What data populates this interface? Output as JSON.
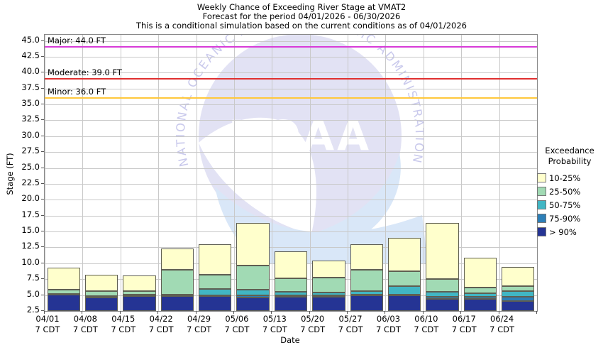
{
  "title": {
    "line1": "Weekly Chance of Exceeding River Stage at VMAT2",
    "line2": "Forecast for the period 04/01/2026 - 06/30/2026",
    "line3": "This is a conditional simulation based on the current conditions as of 04/01/2026"
  },
  "axes": {
    "y_label": "Stage (FT)",
    "x_label": "Date"
  },
  "legend": {
    "title_line1": "Exceedance",
    "title_line2": "Probability",
    "items": [
      {
        "label": "10-25%",
        "color": "#FFFFCC"
      },
      {
        "label": "25-50%",
        "color": "#A1DAB4"
      },
      {
        "label": "50-75%",
        "color": "#41B6C4"
      },
      {
        "label": "75-90%",
        "color": "#2C7FB8"
      },
      {
        "label": "> 90%",
        "color": "#253494"
      }
    ]
  },
  "watermark": {
    "ring_text": "NATIONAL OCEANIC AND ATMOSPHERIC ADMINISTRATION",
    "center_text": "NOAA",
    "circle_color": "#e2e2f4",
    "swoosh_color": "#d9e7f8",
    "ring_text_color": "#c9c9ec"
  },
  "chart_data": {
    "type": "bar",
    "stacked": true,
    "title": "Weekly Chance of Exceeding River Stage at VMAT2",
    "xlabel": "Date",
    "ylabel": "Stage (FT)",
    "ylim": [
      2.5,
      45.0
    ],
    "ytick_step": 2.5,
    "yticks": [
      2.5,
      5.0,
      7.5,
      10.0,
      12.5,
      15.0,
      17.5,
      20.0,
      22.5,
      25.0,
      27.5,
      30.0,
      32.5,
      35.0,
      37.5,
      40.0,
      42.5,
      45.0
    ],
    "base_value": 2.5,
    "categories": [
      "04/01",
      "04/08",
      "04/15",
      "04/22",
      "04/29",
      "05/06",
      "05/13",
      "05/20",
      "05/27",
      "06/03",
      "06/10",
      "06/17",
      "06/24"
    ],
    "x_tick_sublabel": "7 CDT",
    "series": [
      {
        "name": "> 90%",
        "color": "#253494",
        "tops": [
          5.1,
          4.6,
          4.95,
          4.9,
          4.9,
          4.6,
          4.75,
          4.75,
          4.95,
          4.95,
          4.45,
          4.35,
          4.1
        ]
      },
      {
        "name": "75-90%",
        "color": "#2C7FB8",
        "tops": [
          5.1,
          4.7,
          5.0,
          5.0,
          5.0,
          5.0,
          5.0,
          5.0,
          5.05,
          5.05,
          4.75,
          4.75,
          4.75
        ]
      },
      {
        "name": "50-75%",
        "color": "#41B6C4",
        "tops": [
          5.2,
          4.9,
          5.1,
          5.1,
          6.0,
          5.8,
          5.5,
          5.45,
          5.65,
          6.4,
          5.55,
          5.3,
          5.6
        ]
      },
      {
        "name": "25-50%",
        "color": "#A1DAB4",
        "tops": [
          5.8,
          5.6,
          5.6,
          9.0,
          8.2,
          9.7,
          7.6,
          7.8,
          9.0,
          8.7,
          7.5,
          6.2,
          6.4
        ]
      },
      {
        "name": "10-25%",
        "color": "#FFFFCC",
        "tops": [
          9.3,
          8.2,
          8.1,
          12.3,
          13.0,
          16.4,
          11.9,
          10.4,
          13.0,
          14.0,
          16.4,
          10.9,
          9.4
        ]
      }
    ],
    "reference_lines": [
      {
        "label": "Major: 44.0 FT",
        "value": 44.0,
        "color": "#D83BD8"
      },
      {
        "label": "Moderate: 39.0 FT",
        "value": 39.0,
        "color": "#E03030"
      },
      {
        "label": "Minor: 36.0 FT",
        "value": 36.0,
        "color": "#FFC83C"
      }
    ]
  }
}
